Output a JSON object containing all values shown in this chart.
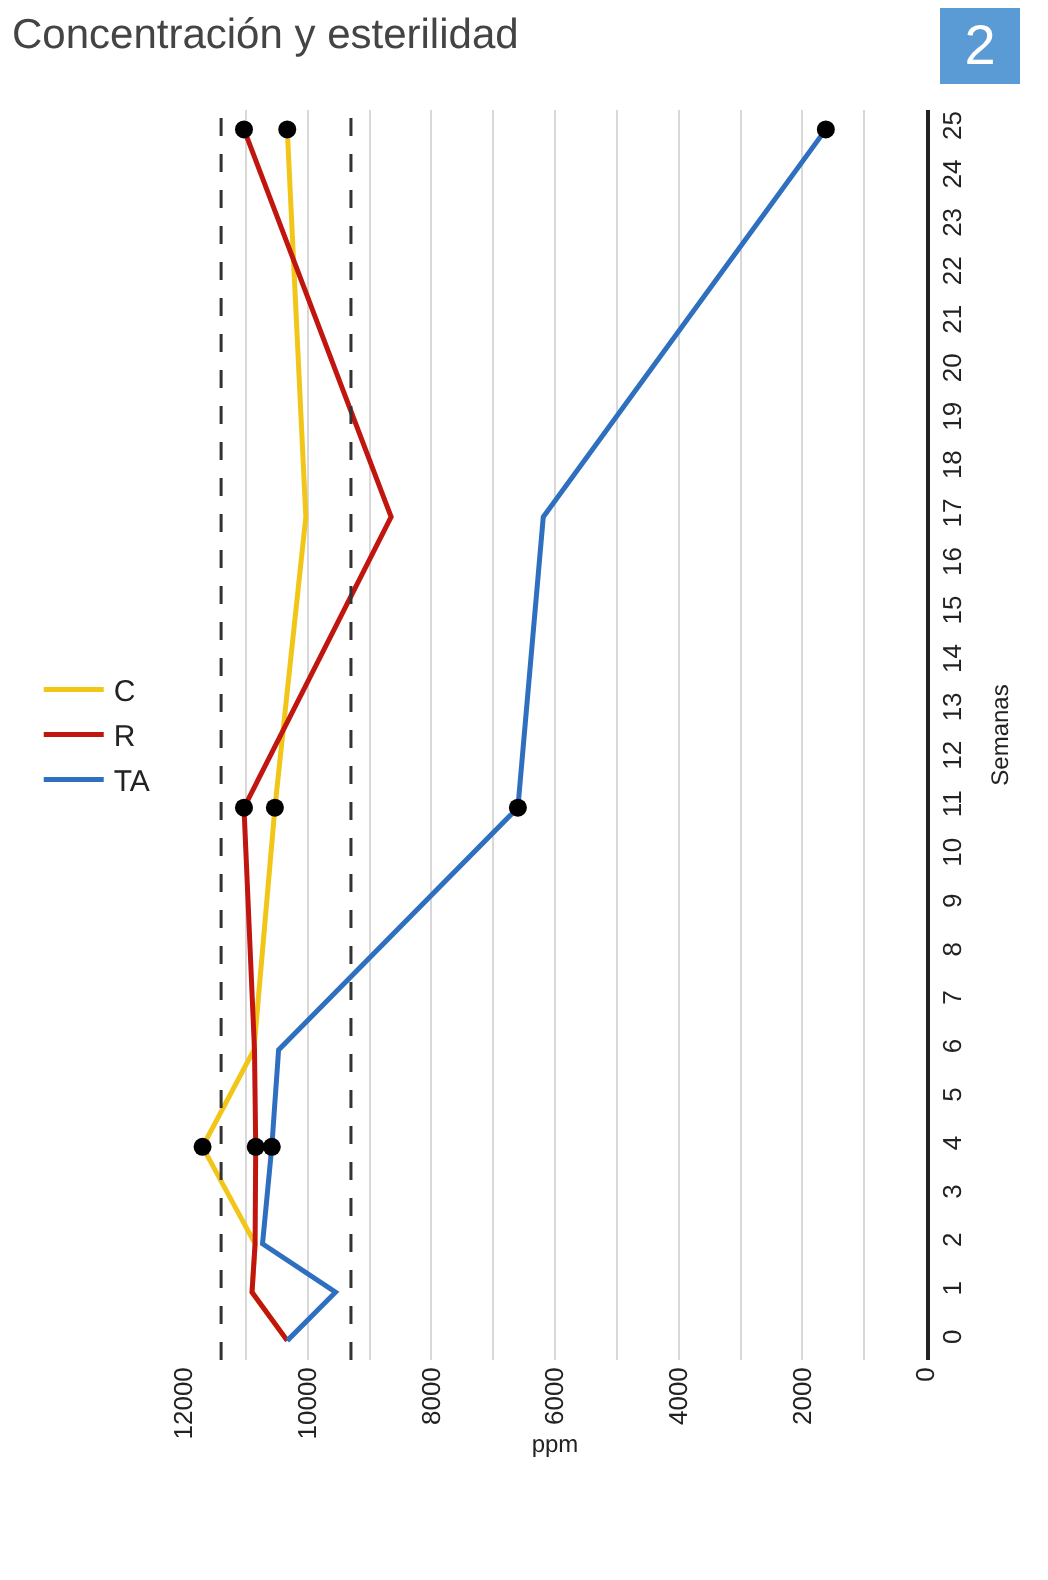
{
  "chart_data": {
    "type": "line",
    "orientation": "horizontal",
    "title": "Concentración y esterilidad",
    "xlabel": "ppm",
    "ylabel": "Semanas",
    "x": [
      0,
      1,
      2,
      4,
      6,
      11,
      17,
      25
    ],
    "series": [
      {
        "name": "C",
        "color": "#f2c618",
        "values": [
          10330,
          10900,
          10850,
          11700,
          10870,
          10530,
          10030,
          10330
        ]
      },
      {
        "name": "R",
        "color": "#c0160f",
        "values": [
          10330,
          10900,
          10850,
          10840,
          10860,
          11030,
          8650,
          11030
        ]
      },
      {
        "name": "TA",
        "color": "#2f6fc0",
        "values": [
          10330,
          9550,
          10730,
          10580,
          10470,
          6600,
          6190,
          1620
        ]
      },
      {
        "type": "scatter",
        "color": "#000000",
        "marker": "circle",
        "x": [
          4,
          4,
          4,
          11,
          11,
          11,
          25,
          25,
          25
        ],
        "values": [
          11700,
          10840,
          10580,
          11030,
          10530,
          6600,
          11030,
          10330,
          1620
        ]
      }
    ],
    "xlim": [
      12000,
      0
    ],
    "xticks": [
      0,
      {
        "value": 1000,
        "label": null
      },
      2000,
      {
        "value": 3000,
        "label": null
      },
      4000,
      {
        "value": 5000,
        "label": null
      },
      6000,
      {
        "value": 7000,
        "label": null
      },
      8000,
      {
        "value": 9000,
        "label": null
      },
      10000,
      {
        "value": 11000,
        "label": null
      },
      12000
    ],
    "ylim": [
      -0.4,
      25.4
    ],
    "yticks": [
      0,
      1,
      2,
      3,
      4,
      5,
      6,
      7,
      8,
      9,
      10,
      11,
      12,
      13,
      14,
      15,
      16,
      17,
      18,
      19,
      20,
      21,
      22,
      23,
      24,
      25
    ],
    "grid": "x",
    "legend": "left",
    "marker": "none",
    "line_style": "solid",
    "ref_lines": [
      {
        "axis": "x",
        "value": 11400,
        "color": "#333333",
        "line_style": "dashed"
      },
      {
        "axis": "x",
        "value": 9300,
        "color": "#333333",
        "line_style": "dashed"
      }
    ],
    "annotations": [
      "2"
    ]
  }
}
